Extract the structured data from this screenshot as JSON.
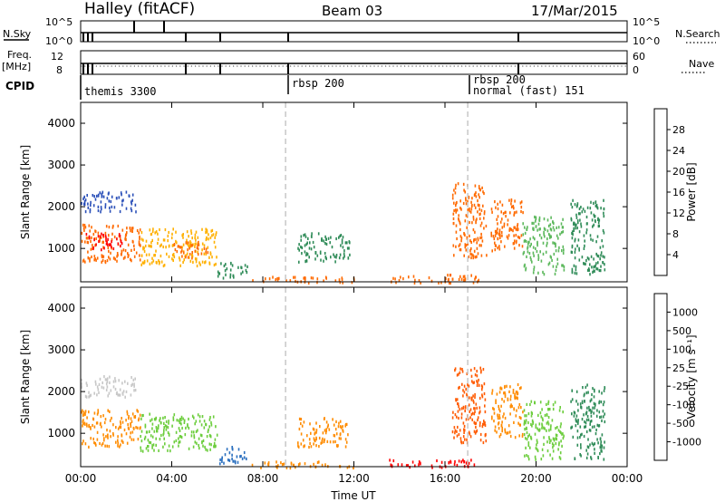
{
  "header": {
    "station": "Halley (fitACF)",
    "beam": "Beam 03",
    "date": "17/Mar/2015"
  },
  "status_panels": {
    "nsky_label": "N.Sky",
    "nsky_ticks": [
      "10^5",
      "10^0"
    ],
    "nsearch_label": "N.Search",
    "nsearch_ticks": [
      "10^5",
      "10^0"
    ],
    "freq_label": "Freq.",
    "freq_unit": "[MHz]",
    "freq_ticks": [
      "12",
      "8"
    ],
    "nave_label": "Nave",
    "nave_ticks": [
      "60",
      "0"
    ],
    "cpid_label": "CPID",
    "cpid_segments": [
      {
        "label": "themis 3300",
        "start": 0.0
      },
      {
        "label": "rbsp 200",
        "start": 9.0
      },
      {
        "label": "rbsp 200",
        "start": 17.0
      },
      {
        "label": "normal (fast) 151",
        "start": 17.1
      }
    ]
  },
  "chart_data": [
    {
      "type": "heatmap",
      "quantity": "power",
      "xlabel": "",
      "ylabel": "Slant Range [km]",
      "xlim": [
        0,
        24
      ],
      "ylim": [
        200,
        4500
      ],
      "y_ticks": [
        1000,
        2000,
        3000,
        4000
      ],
      "x_ticks": [
        0,
        4,
        8,
        12,
        16,
        20,
        24
      ],
      "dashed_time_markers": [
        9.0,
        17.0
      ],
      "colorbar": {
        "label": "Power [dB]",
        "ticks": [
          "4",
          "8",
          "12",
          "16",
          "20",
          "24",
          "28"
        ],
        "colors": [
          "#0018ff",
          "#2a4fb8",
          "#2e8b57",
          "#5cb85c",
          "#e8e000",
          "#ffb000",
          "#ff6a00",
          "#ff0000"
        ]
      },
      "regions": [
        {
          "t": [
            0.0,
            2.6
          ],
          "range": [
            700,
            1600
          ],
          "level": 26
        },
        {
          "t": [
            0.2,
            1.8
          ],
          "range": [
            1000,
            1400
          ],
          "level": 28
        },
        {
          "t": [
            2.6,
            6.0
          ],
          "range": [
            600,
            1500
          ],
          "level": 22
        },
        {
          "t": [
            4.0,
            5.6
          ],
          "range": [
            800,
            1200
          ],
          "level": 27
        },
        {
          "t": [
            6.0,
            7.3
          ],
          "range": [
            300,
            700
          ],
          "level": 10
        },
        {
          "t": [
            0.0,
            2.4
          ],
          "range": [
            1900,
            2400
          ],
          "level": 6
        },
        {
          "t": [
            7.5,
            12.0
          ],
          "range": [
            200,
            350
          ],
          "level": 26
        },
        {
          "t": [
            9.5,
            11.8
          ],
          "range": [
            700,
            1400
          ],
          "level": 10
        },
        {
          "t": [
            13.5,
            17.5
          ],
          "range": [
            200,
            400
          ],
          "level": 27
        },
        {
          "t": [
            16.3,
            17.8
          ],
          "range": [
            800,
            2600
          ],
          "level": 24
        },
        {
          "t": [
            18.0,
            19.4
          ],
          "range": [
            900,
            2200
          ],
          "level": 25
        },
        {
          "t": [
            19.4,
            21.2
          ],
          "range": [
            400,
            1800
          ],
          "level": 14
        },
        {
          "t": [
            21.5,
            23.0
          ],
          "range": [
            400,
            2200
          ],
          "level": 8
        }
      ]
    },
    {
      "type": "heatmap",
      "quantity": "velocity",
      "xlabel": "Time UT",
      "ylabel": "Slant Range [km]",
      "xlim": [
        0,
        24
      ],
      "ylim": [
        200,
        4500
      ],
      "y_ticks": [
        1000,
        2000,
        3000,
        4000
      ],
      "x_ticks": [
        0,
        4,
        8,
        12,
        16,
        20,
        24
      ],
      "x_tick_labels": [
        "00:00",
        "04:00",
        "08:00",
        "12:00",
        "16:00",
        "20:00",
        "00:00"
      ],
      "dashed_time_markers": [
        9.0,
        17.0
      ],
      "colorbar": {
        "label": "Velocity [m s⁻¹]",
        "ticks": [
          "-1000",
          "-500",
          "-100",
          "-25",
          "25",
          "100",
          "500",
          "1000"
        ],
        "colors": [
          "#ff0000",
          "#ff5a00",
          "#ff8c00",
          "#ffb43c",
          "#c8c8c8",
          "#6ccd3c",
          "#2e8b57",
          "#2a6fbf",
          "#0033cc"
        ]
      },
      "regions": [
        {
          "t": [
            0.0,
            2.6
          ],
          "range": [
            700,
            1600
          ],
          "velocity": -100
        },
        {
          "t": [
            0.0,
            2.4
          ],
          "range": [
            1900,
            2400
          ],
          "velocity": 25
        },
        {
          "t": [
            2.6,
            6.0
          ],
          "range": [
            600,
            1500
          ],
          "velocity": 100
        },
        {
          "t": [
            6.0,
            7.3
          ],
          "range": [
            300,
            700
          ],
          "velocity": 1000
        },
        {
          "t": [
            7.5,
            12.0
          ],
          "range": [
            200,
            350
          ],
          "velocity": -100
        },
        {
          "t": [
            9.5,
            11.8
          ],
          "range": [
            700,
            1400
          ],
          "velocity": -100
        },
        {
          "t": [
            13.5,
            17.5
          ],
          "range": [
            200,
            400
          ],
          "velocity": -1000
        },
        {
          "t": [
            16.3,
            17.8
          ],
          "range": [
            800,
            2600
          ],
          "velocity": -500
        },
        {
          "t": [
            18.0,
            19.4
          ],
          "range": [
            900,
            2200
          ],
          "velocity": -100
        },
        {
          "t": [
            19.4,
            21.2
          ],
          "range": [
            400,
            1800
          ],
          "velocity": 100
        },
        {
          "t": [
            21.5,
            23.0
          ],
          "range": [
            400,
            2200
          ],
          "velocity": 500
        }
      ]
    }
  ]
}
